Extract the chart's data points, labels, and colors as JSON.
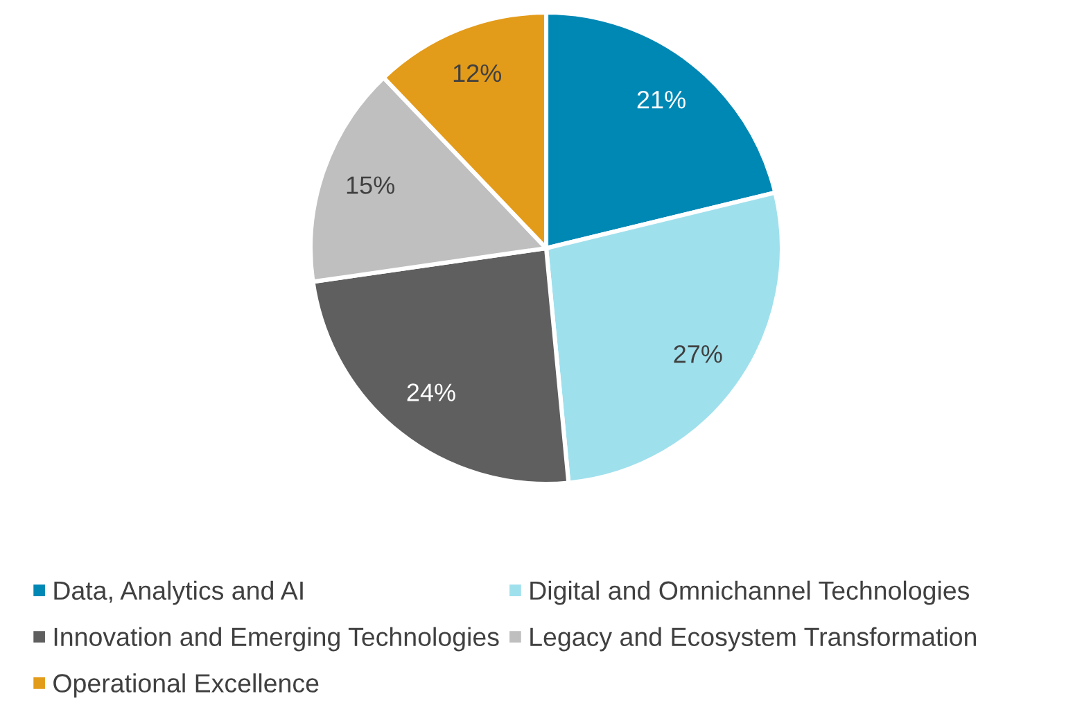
{
  "chart_data": {
    "type": "pie",
    "categories": [
      "Data, Analytics and AI",
      "Digital and Omnichannel Technologies",
      "Innovation and Emerging Technologies",
      "Legacy and Ecosystem Transformation",
      "Operational Excellence"
    ],
    "values": [
      21,
      27,
      24,
      15,
      12
    ],
    "value_labels": [
      "21%",
      "27%",
      "24%",
      "15%",
      "12%"
    ],
    "colors": [
      "#0088b5",
      "#9fe0ed",
      "#5f5f5f",
      "#bfbfbf",
      "#e39b1a"
    ],
    "legend": "bottom"
  }
}
